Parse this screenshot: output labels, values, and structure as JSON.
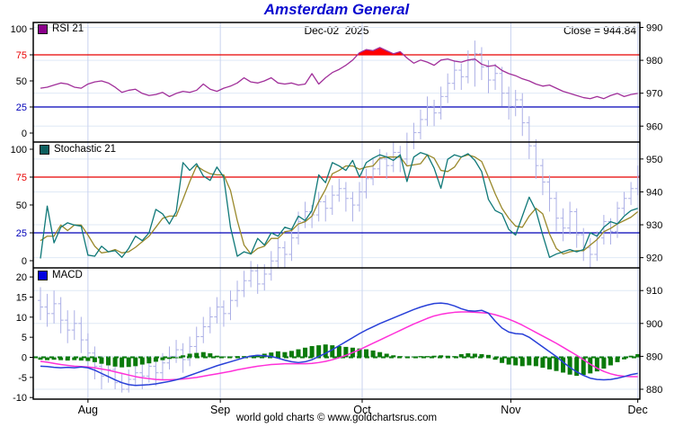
{
  "title": "Amsterdam General",
  "header": {
    "date_label": "Dec-02  2025",
    "close_label": "Close = 944.84"
  },
  "footer": {
    "credit": "world gold charts © www.goldchartsrus.com"
  },
  "x_axis": {
    "months": [
      "Aug",
      "Sep",
      "Oct",
      "Nov",
      "Dec"
    ],
    "month_indices": [
      7,
      26.5,
      47.4,
      69.3,
      88
    ]
  },
  "price_axis": {
    "ticks": [
      990,
      980,
      970,
      960,
      950,
      940,
      930,
      920,
      910,
      900,
      890,
      880
    ]
  },
  "panels": {
    "rsi": {
      "legend": "RSI 21",
      "legend_color": "#8b008b",
      "axis_ticks": [
        100,
        75,
        50,
        25,
        0
      ],
      "overbought": 75,
      "oversold": 25
    },
    "stoch": {
      "legend": "Stochastic 21",
      "legend_color": "#0d5f5f",
      "axis_ticks": [
        100,
        75,
        50,
        25,
        0
      ],
      "overbought": 75,
      "oversold": 25
    },
    "macd": {
      "legend": "MACD",
      "legend_color": "#0000e0",
      "axis_ticks": [
        20,
        15,
        10,
        5,
        0,
        -5,
        -10
      ]
    }
  },
  "colors": {
    "title": "#0b0bcf",
    "rsi_line": "#a1309a",
    "rsi_fill": "#ff0000",
    "overbought_line": "#e80000",
    "oversold_line": "#0000b8",
    "stoch_k": "#0f7878",
    "stoch_d": "#99882a",
    "macd_line": "#2840d8",
    "signal_line": "#ff30d8",
    "hist_bar": "#0a7a0a",
    "zero_dash": "#0a7a0a",
    "price_bar": "#abafe6",
    "grid_h": "#dfe9f6",
    "grid_v": "#c9d2ef",
    "frame": "#000000"
  },
  "chart_data": [
    {
      "type": "ohlc-bar",
      "name": "price",
      "final_close": 944.84,
      "y_range": [
        876,
        991.5
      ],
      "bars": [
        [
          907,
          911,
          901,
          905
        ],
        [
          905,
          909,
          899,
          903
        ],
        [
          903,
          910,
          900,
          906
        ],
        [
          906,
          908,
          897,
          901
        ],
        [
          901,
          904,
          894,
          898
        ],
        [
          898,
          904,
          895,
          900
        ],
        [
          900,
          902,
          891,
          895
        ],
        [
          895,
          897,
          887,
          891
        ],
        [
          891,
          893,
          883,
          887
        ],
        [
          887,
          890,
          880,
          884
        ],
        [
          884,
          890,
          882,
          886
        ],
        [
          886,
          887,
          880,
          882
        ],
        [
          882,
          885,
          879,
          880
        ],
        [
          880,
          886,
          879,
          883
        ],
        [
          883,
          888,
          881,
          885
        ],
        [
          885,
          889,
          880,
          884
        ],
        [
          884,
          890,
          882,
          887
        ],
        [
          887,
          889,
          881,
          885
        ],
        [
          885,
          891,
          883,
          888
        ],
        [
          888,
          893,
          886,
          890
        ],
        [
          890,
          895,
          888,
          892
        ],
        [
          892,
          894,
          885,
          889
        ],
        [
          889,
          896,
          887,
          893
        ],
        [
          893,
          899,
          891,
          896
        ],
        [
          896,
          902,
          894,
          899
        ],
        [
          899,
          905,
          897,
          902
        ],
        [
          902,
          908,
          900,
          905
        ],
        [
          905,
          907,
          899,
          903
        ],
        [
          903,
          910,
          901,
          907
        ],
        [
          907,
          913,
          905,
          910
        ],
        [
          910,
          916,
          908,
          913
        ],
        [
          913,
          919,
          911,
          916
        ],
        [
          916,
          918,
          909,
          912
        ],
        [
          912,
          918,
          910,
          915
        ],
        [
          915,
          922,
          913,
          919
        ],
        [
          919,
          926,
          917,
          923
        ],
        [
          923,
          925,
          917,
          921
        ],
        [
          921,
          929,
          919,
          926
        ],
        [
          926,
          934,
          924,
          931
        ],
        [
          931,
          937,
          929,
          934
        ],
        [
          934,
          936,
          929,
          933
        ],
        [
          933,
          940,
          931,
          937
        ],
        [
          937,
          939,
          931,
          935
        ],
        [
          935,
          942,
          933,
          939
        ],
        [
          939,
          944,
          937,
          941
        ],
        [
          941,
          943,
          934,
          938
        ],
        [
          938,
          940,
          931,
          936
        ],
        [
          936,
          943,
          934,
          940
        ],
        [
          940,
          947,
          938,
          944
        ],
        [
          944,
          950,
          942,
          947
        ],
        [
          947,
          953,
          945,
          950
        ],
        [
          950,
          952,
          944,
          948
        ],
        [
          948,
          955,
          946,
          952
        ],
        [
          952,
          954,
          946,
          950
        ],
        [
          950,
          958,
          948,
          955
        ],
        [
          955,
          961,
          953,
          958
        ],
        [
          958,
          965,
          956,
          962
        ],
        [
          962,
          969,
          960,
          966
        ],
        [
          966,
          968,
          960,
          964
        ],
        [
          964,
          972,
          962,
          969
        ],
        [
          969,
          976,
          967,
          973
        ],
        [
          973,
          980,
          971,
          977
        ],
        [
          977,
          979,
          971,
          975
        ],
        [
          975,
          983,
          973,
          980
        ],
        [
          980,
          986,
          972,
          982
        ],
        [
          982,
          984,
          974,
          978
        ],
        [
          978,
          980,
          970,
          974
        ],
        [
          974,
          979,
          971,
          976
        ],
        [
          976,
          978,
          966,
          970
        ],
        [
          970,
          972,
          962,
          966
        ],
        [
          966,
          971,
          963,
          968
        ],
        [
          968,
          970,
          957,
          961
        ],
        [
          961,
          963,
          950,
          954
        ],
        [
          954,
          956,
          944,
          948
        ],
        [
          948,
          950,
          939,
          943
        ],
        [
          943,
          945,
          934,
          938
        ],
        [
          938,
          940,
          928,
          932
        ],
        [
          932,
          935,
          925,
          929
        ],
        [
          929,
          937,
          927,
          934
        ],
        [
          934,
          935,
          923,
          927
        ],
        [
          927,
          929,
          919,
          923
        ],
        [
          923,
          926,
          917,
          921
        ],
        [
          921,
          928,
          919,
          926
        ],
        [
          926,
          933,
          924,
          931
        ],
        [
          931,
          932,
          924,
          928
        ],
        [
          928,
          937,
          926,
          935
        ],
        [
          935,
          940,
          933,
          938
        ],
        [
          938,
          943,
          936,
          941
        ],
        [
          941,
          948,
          939,
          944.84
        ]
      ]
    },
    {
      "type": "line",
      "name": "RSI 21",
      "ylim": [
        0,
        100
      ],
      "thresholds": [
        75,
        25
      ],
      "values": [
        43,
        44,
        46,
        48,
        47,
        44,
        43,
        47,
        49,
        50,
        48,
        44,
        39,
        41,
        42,
        38,
        36,
        37,
        39,
        35,
        38,
        40,
        39,
        41,
        47,
        42,
        40,
        43,
        45,
        48,
        53,
        49,
        48,
        50,
        53,
        48,
        47,
        48,
        46,
        47,
        57,
        47,
        53,
        58,
        61,
        65,
        70,
        77,
        80,
        79,
        82,
        79,
        76,
        78,
        72,
        67,
        70,
        68,
        65,
        70,
        71,
        69,
        68,
        70,
        71,
        66,
        64,
        65,
        60,
        57,
        55,
        52,
        50,
        47,
        45,
        46,
        43,
        40,
        38,
        36,
        34,
        33,
        35,
        33,
        36,
        38,
        35,
        37,
        38
      ]
    },
    {
      "type": "line",
      "name": "Stochastic 21",
      "ylim": [
        0,
        100
      ],
      "thresholds": [
        75,
        25
      ],
      "series": [
        {
          "name": "%K",
          "values": [
            2,
            49,
            16,
            30,
            34,
            32,
            31,
            5,
            4,
            13,
            8,
            9,
            3,
            11,
            22,
            18,
            25,
            46,
            42,
            33,
            44,
            88,
            81,
            87,
            76,
            72,
            84,
            75,
            30,
            4,
            8,
            6,
            20,
            14,
            25,
            22,
            30,
            28,
            40,
            36,
            45,
            77,
            70,
            88,
            85,
            81,
            90,
            75,
            88,
            92,
            95,
            93,
            90,
            95,
            71,
            93,
            97,
            95,
            83,
            65,
            91,
            95,
            93,
            96,
            90,
            80,
            55,
            45,
            42,
            28,
            23,
            40,
            57,
            45,
            23,
            3,
            6,
            8,
            10,
            8,
            10,
            25,
            22,
            30,
            35,
            33,
            40,
            45,
            47
          ]
        },
        {
          "name": "%D",
          "values": [
            18,
            22,
            22,
            32,
            27,
            32,
            32,
            23,
            13,
            7,
            8,
            10,
            7,
            8,
            12,
            17,
            22,
            30,
            38,
            40,
            40,
            55,
            71,
            85,
            81,
            78,
            77,
            77,
            63,
            36,
            14,
            6,
            11,
            13,
            20,
            20,
            26,
            27,
            33,
            35,
            40,
            53,
            64,
            78,
            81,
            85,
            85,
            82,
            84,
            85,
            92,
            93,
            93,
            93,
            85,
            86,
            87,
            95,
            92,
            81,
            80,
            84,
            93,
            95,
            93,
            89,
            75,
            60,
            47,
            38,
            31,
            30,
            40,
            47,
            42,
            24,
            11,
            6,
            8,
            9,
            9,
            14,
            19,
            26,
            29,
            33,
            36,
            39,
            44
          ]
        }
      ]
    },
    {
      "type": "line+bar",
      "name": "MACD",
      "ylim": [
        -12.5,
        20.5
      ],
      "series": [
        {
          "name": "macd",
          "values": [
            -2.2,
            -2.3,
            -2.5,
            -2.6,
            -2.5,
            -2.6,
            -2.4,
            -2.6,
            -3.2,
            -4.0,
            -4.8,
            -5.6,
            -6.3,
            -6.8,
            -7.0,
            -6.9,
            -6.8,
            -6.6,
            -6.3,
            -6.0,
            -5.6,
            -5.1,
            -4.5,
            -3.9,
            -3.3,
            -2.7,
            -2.1,
            -1.6,
            -1.1,
            -0.6,
            -0.1,
            0.3,
            0.5,
            0.4,
            0.2,
            -0.2,
            -0.7,
            -1.1,
            -1.3,
            -1.1,
            -0.6,
            0.2,
            1.0,
            1.9,
            2.9,
            3.9,
            4.9,
            5.9,
            6.8,
            7.6,
            8.4,
            9.1,
            9.8,
            10.5,
            11.2,
            11.9,
            12.5,
            13.0,
            13.4,
            13.5,
            13.3,
            12.8,
            12.1,
            11.6,
            11.5,
            11.7,
            11.0,
            9.0,
            7.3,
            6.3,
            5.9,
            5.8,
            5.0,
            3.8,
            2.6,
            1.4,
            0.2,
            -1.2,
            -2.5,
            -3.6,
            -4.5,
            -5.2,
            -5.5,
            -5.6,
            -5.5,
            -5.2,
            -4.8,
            -4.3,
            -4.0
          ]
        },
        {
          "name": "signal",
          "values": [
            -1.0,
            -1.2,
            -1.5,
            -1.8,
            -2.0,
            -2.2,
            -2.3,
            -2.4,
            -2.6,
            -2.9,
            -3.2,
            -3.6,
            -4.0,
            -4.4,
            -4.8,
            -5.1,
            -5.3,
            -5.5,
            -5.6,
            -5.6,
            -5.5,
            -5.4,
            -5.2,
            -5.0,
            -4.7,
            -4.4,
            -4.1,
            -3.8,
            -3.5,
            -3.1,
            -2.8,
            -2.5,
            -2.2,
            -2.0,
            -1.8,
            -1.7,
            -1.6,
            -1.6,
            -1.6,
            -1.6,
            -1.5,
            -1.3,
            -1.0,
            -0.6,
            -0.1,
            0.5,
            1.2,
            1.9,
            2.7,
            3.5,
            4.3,
            5.1,
            5.9,
            6.7,
            7.5,
            8.3,
            9.0,
            9.7,
            10.3,
            10.7,
            11.0,
            11.2,
            11.3,
            11.3,
            11.2,
            11.1,
            11.0,
            10.6,
            10.1,
            9.5,
            8.8,
            8.0,
            7.1,
            6.2,
            5.3,
            4.4,
            3.5,
            2.5,
            1.5,
            0.5,
            -0.6,
            -1.7,
            -2.7,
            -3.5,
            -4.1,
            -4.5,
            -4.7,
            -4.8,
            -4.8
          ]
        },
        {
          "name": "histogram",
          "values": [
            -0.6,
            -0.7,
            -0.6,
            -0.7,
            -0.8,
            -0.7,
            -0.8,
            -0.9,
            -1.2,
            -1.6,
            -2.0,
            -2.3,
            -2.5,
            -2.4,
            -2.2,
            -1.8,
            -1.5,
            -1.1,
            -0.7,
            -0.4,
            -0.1,
            0.5,
            0.9,
            1.1,
            1.3,
            1.0,
            0.4,
            0.2,
            0.2,
            0.3,
            0.3,
            0.4,
            0.6,
            0.9,
            1.2,
            1.5,
            1.3,
            1.6,
            2.0,
            2.4,
            2.8,
            3.0,
            3.2,
            3.0,
            2.8,
            2.6,
            2.4,
            2.2,
            2.0,
            1.7,
            1.3,
            0.9,
            0.5,
            0.3,
            0.2,
            0.2,
            0.3,
            0.3,
            0.4,
            0.5,
            0.4,
            0.3,
            0.8,
            1.0,
            0.9,
            0.8,
            0.6,
            -0.6,
            -1.4,
            -1.8,
            -2.0,
            -2.2,
            -2.0,
            -2.2,
            -2.6,
            -3.0,
            -3.4,
            -3.8,
            -4.3,
            -4.6,
            -4.4,
            -4.0,
            -3.5,
            -2.8,
            -2.0,
            -1.2,
            -0.5,
            0.4,
            0.8
          ]
        }
      ]
    }
  ]
}
